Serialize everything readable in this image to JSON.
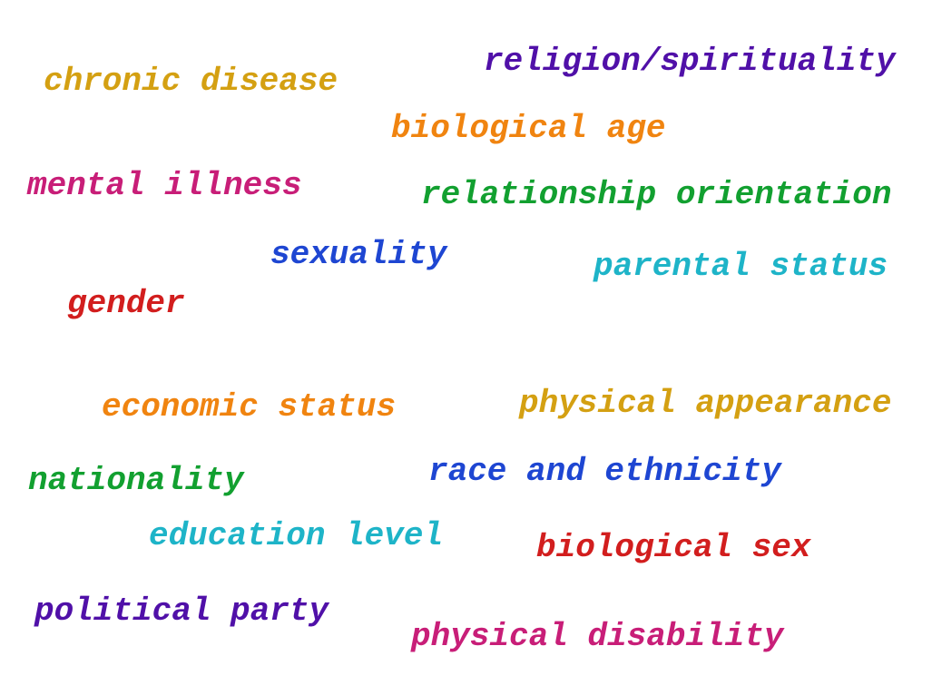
{
  "words": [
    {
      "text": "chronic disease",
      "color": "#d4a012"
    },
    {
      "text": "religion/spirituality",
      "color": "#5010a8"
    },
    {
      "text": "biological age",
      "color": "#f08410"
    },
    {
      "text": "mental illness",
      "color": "#c81e78"
    },
    {
      "text": "relationship orientation",
      "color": "#12a030"
    },
    {
      "text": "sexuality",
      "color": "#1e46d2"
    },
    {
      "text": "parental status",
      "color": "#1eb4c8"
    },
    {
      "text": "gender",
      "color": "#d21e1e"
    },
    {
      "text": "economic status",
      "color": "#f08410"
    },
    {
      "text": "physical appearance",
      "color": "#d4a012"
    },
    {
      "text": "nationality",
      "color": "#12a030"
    },
    {
      "text": "race and ethnicity",
      "color": "#1e46d2"
    },
    {
      "text": "education level",
      "color": "#1eb4c8"
    },
    {
      "text": "biological sex",
      "color": "#d21e1e"
    },
    {
      "text": "political party",
      "color": "#5010a8"
    },
    {
      "text": "physical disability",
      "color": "#c81e78"
    }
  ]
}
